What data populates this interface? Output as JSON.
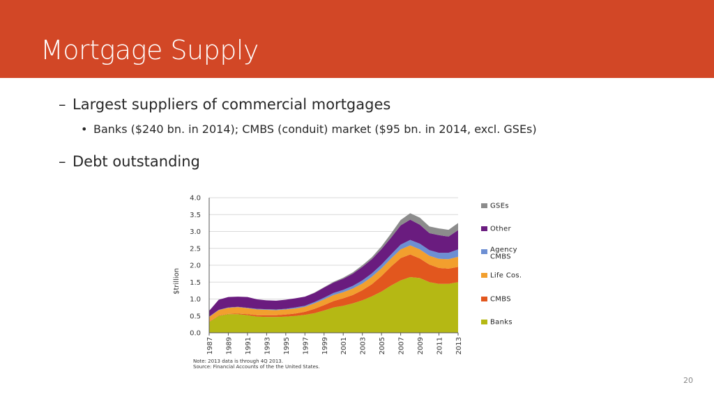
{
  "slide": {
    "title": "Mortgage Supply",
    "bullet1": "Largest suppliers of commercial mortgages",
    "bullet1_sub": "Banks ($240 bn. in 2014); CMBS (conduit) market ($95 bn. in 2014, excl. GSEs)",
    "bullet2": "Debt outstanding",
    "page_number": "20",
    "dash": "–",
    "dot": "•"
  },
  "chart_data": {
    "type": "area",
    "stacked": true,
    "ylabel": "$trillion",
    "ylim": [
      0,
      4.0
    ],
    "yticks": [
      "0.0",
      "0.5",
      "1.0",
      "1.5",
      "2.0",
      "2.5",
      "3.0",
      "3.5",
      "4.0"
    ],
    "x": [
      1987,
      1988,
      1989,
      1990,
      1991,
      1992,
      1993,
      1994,
      1995,
      1996,
      1997,
      1998,
      1999,
      2000,
      2001,
      2002,
      2003,
      2004,
      2005,
      2006,
      2007,
      2008,
      2009,
      2010,
      2011,
      2012,
      2013
    ],
    "xtick_labels": [
      "1987",
      "1989",
      "1991",
      "1993",
      "1995",
      "1997",
      "1999",
      "2001",
      "2003",
      "2005",
      "2007",
      "2009",
      "2011",
      "2013"
    ],
    "series": [
      {
        "name": "Banks",
        "color": "#B5B814",
        "values": [
          0.32,
          0.5,
          0.55,
          0.55,
          0.52,
          0.48,
          0.47,
          0.47,
          0.48,
          0.5,
          0.53,
          0.58,
          0.66,
          0.75,
          0.8,
          0.87,
          0.96,
          1.08,
          1.22,
          1.4,
          1.55,
          1.65,
          1.62,
          1.5,
          1.45,
          1.45,
          1.5
        ]
      },
      {
        "name": "CMBS",
        "color": "#E2571E",
        "values": [
          0.01,
          0.01,
          0.01,
          0.02,
          0.03,
          0.04,
          0.05,
          0.05,
          0.06,
          0.07,
          0.09,
          0.13,
          0.16,
          0.19,
          0.22,
          0.25,
          0.3,
          0.36,
          0.46,
          0.56,
          0.66,
          0.67,
          0.58,
          0.52,
          0.47,
          0.45,
          0.45
        ]
      },
      {
        "name": "Life Cos.",
        "color": "#F29F2E",
        "values": [
          0.14,
          0.16,
          0.18,
          0.19,
          0.18,
          0.17,
          0.16,
          0.15,
          0.15,
          0.15,
          0.15,
          0.16,
          0.17,
          0.18,
          0.18,
          0.19,
          0.2,
          0.22,
          0.23,
          0.24,
          0.26,
          0.27,
          0.27,
          0.26,
          0.27,
          0.28,
          0.3
        ]
      },
      {
        "name": "Agency CMBS",
        "color": "#6D8FD3",
        "values": [
          0.01,
          0.01,
          0.01,
          0.01,
          0.01,
          0.02,
          0.02,
          0.02,
          0.02,
          0.03,
          0.03,
          0.04,
          0.05,
          0.06,
          0.07,
          0.08,
          0.09,
          0.1,
          0.11,
          0.12,
          0.14,
          0.16,
          0.17,
          0.17,
          0.18,
          0.19,
          0.22
        ]
      },
      {
        "name": "Other",
        "color": "#6A1C7F",
        "values": [
          0.17,
          0.3,
          0.31,
          0.3,
          0.32,
          0.28,
          0.26,
          0.26,
          0.27,
          0.27,
          0.27,
          0.27,
          0.3,
          0.31,
          0.33,
          0.36,
          0.4,
          0.42,
          0.46,
          0.5,
          0.57,
          0.6,
          0.56,
          0.5,
          0.52,
          0.48,
          0.57
        ]
      },
      {
        "name": "GSEs",
        "color": "#8C8C8C",
        "values": [
          0.0,
          0.0,
          0.0,
          0.0,
          0.0,
          0.0,
          0.0,
          0.0,
          0.0,
          0.0,
          0.0,
          0.01,
          0.01,
          0.02,
          0.03,
          0.04,
          0.05,
          0.06,
          0.08,
          0.12,
          0.16,
          0.19,
          0.21,
          0.2,
          0.2,
          0.2,
          0.21
        ]
      }
    ],
    "legend": [
      "GSEs",
      "Other",
      "Agency CMBS",
      "Life Cos.",
      "CMBS",
      "Banks"
    ],
    "legend_placement": "right",
    "grid": true,
    "notes": [
      "Note: 2013 data is through 4Q 2013.",
      "Source: Financial Accounts of the the United States."
    ]
  }
}
